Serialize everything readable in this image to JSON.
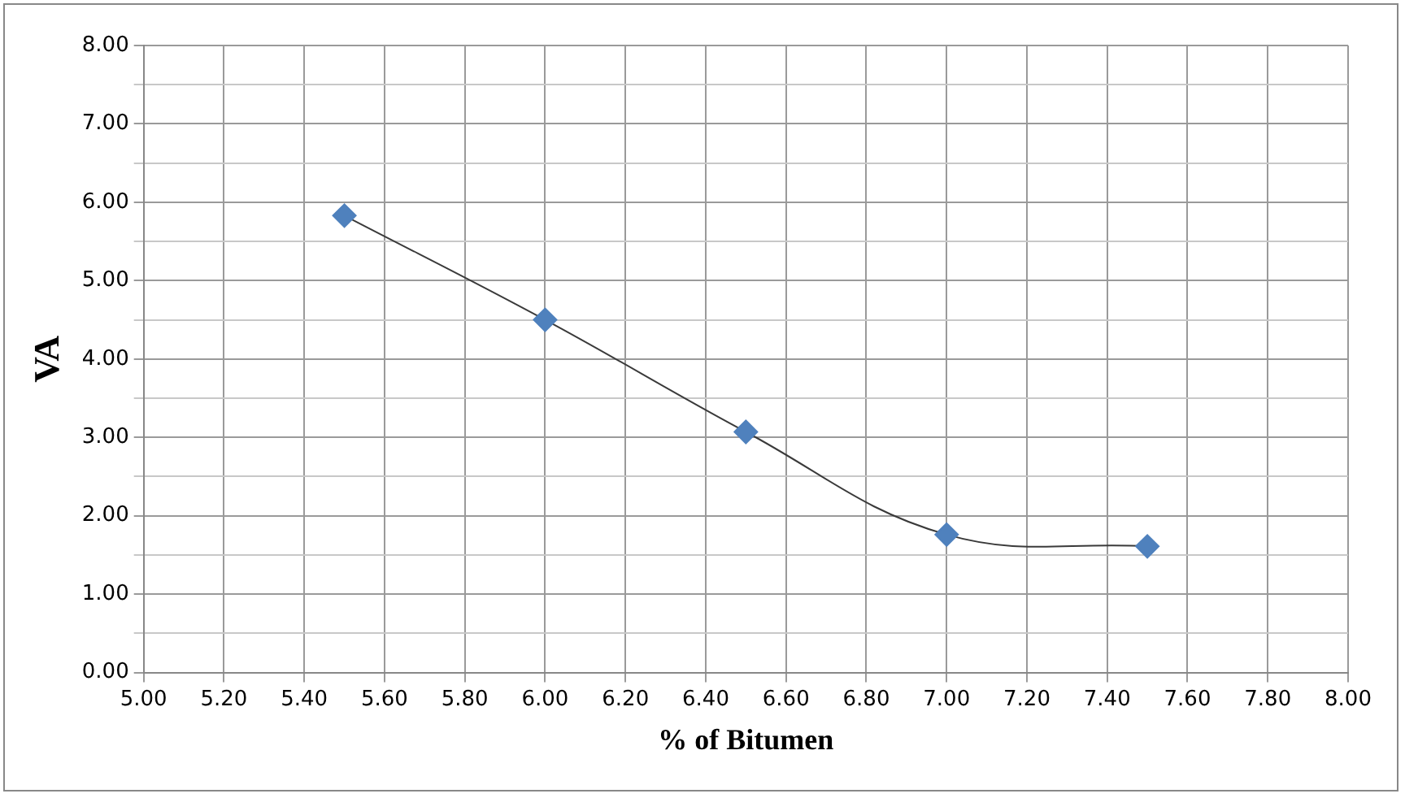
{
  "chart_data": {
    "type": "line",
    "xlabel": "% of Bitumen",
    "ylabel": "VA",
    "x": [
      5.5,
      6.0,
      6.5,
      7.0,
      7.5
    ],
    "series": [
      {
        "color": "#4f81bd",
        "values": [
          5.83,
          4.5,
          3.07,
          1.76,
          1.61
        ]
      }
    ],
    "xlim": [
      5.0,
      8.0
    ],
    "xticks": [
      {
        "value": 5.0,
        "label": "5.00"
      },
      {
        "value": 5.2,
        "label": "5.20"
      },
      {
        "value": 5.4,
        "label": "5.40"
      },
      {
        "value": 5.6,
        "label": "5.60"
      },
      {
        "value": 5.8,
        "label": "5.80"
      },
      {
        "value": 6.0,
        "label": "6.00"
      },
      {
        "value": 6.2,
        "label": "6.20"
      },
      {
        "value": 6.4,
        "label": "6.40"
      },
      {
        "value": 6.6,
        "label": "6.60"
      },
      {
        "value": 6.8,
        "label": "6.80"
      },
      {
        "value": 7.0,
        "label": "7.00"
      },
      {
        "value": 7.2,
        "label": "7.20"
      },
      {
        "value": 7.4,
        "label": "7.40"
      },
      {
        "value": 7.6,
        "label": "7.60"
      },
      {
        "value": 7.8,
        "label": "7.80"
      },
      {
        "value": 8.0,
        "label": "8.00"
      }
    ],
    "ylim": [
      0,
      8
    ],
    "yticks": [
      {
        "value": 0,
        "label": "0.00"
      },
      {
        "value": 0.5,
        "label": null
      },
      {
        "value": 1,
        "label": "1.00"
      },
      {
        "value": 1.5,
        "label": null
      },
      {
        "value": 2,
        "label": "2.00"
      },
      {
        "value": 2.5,
        "label": null
      },
      {
        "value": 3,
        "label": "3.00"
      },
      {
        "value": 3.5,
        "label": null
      },
      {
        "value": 4,
        "label": "4.00"
      },
      {
        "value": 4.5,
        "label": null
      },
      {
        "value": 5,
        "label": "5.00"
      },
      {
        "value": 5.5,
        "label": null
      },
      {
        "value": 6,
        "label": "6.00"
      },
      {
        "value": 6.5,
        "label": null
      },
      {
        "value": 7,
        "label": "7.00"
      },
      {
        "value": 7.5,
        "label": null
      },
      {
        "value": 8,
        "label": "8.00"
      }
    ],
    "grid": true,
    "legend": false,
    "marker": "diamond",
    "line_style": "solid"
  }
}
